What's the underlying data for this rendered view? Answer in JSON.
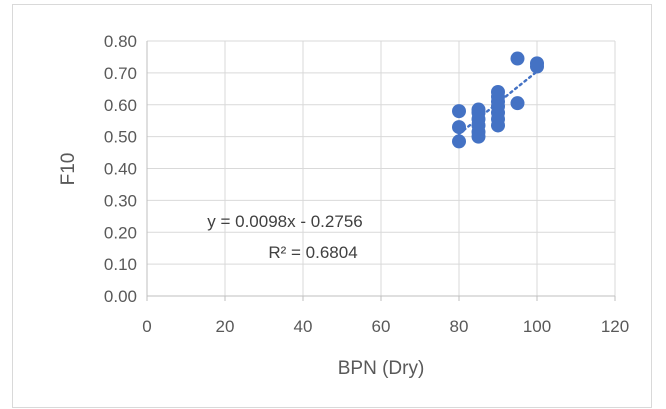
{
  "chart_data": {
    "type": "scatter",
    "title": "",
    "xlabel": "BPN (Dry)",
    "ylabel": "F10",
    "xlim": [
      0,
      120
    ],
    "ylim": [
      0.0,
      0.8
    ],
    "x_ticks": [
      "0",
      "20",
      "40",
      "60",
      "80",
      "100",
      "120"
    ],
    "y_ticks": [
      "0.00",
      "0.10",
      "0.20",
      "0.30",
      "0.40",
      "0.50",
      "0.60",
      "0.70",
      "0.80"
    ],
    "grid": true,
    "legend": "none",
    "marker_color": "#4472c4",
    "series": [
      {
        "points": [
          {
            "x": 80,
            "y": 0.58
          },
          {
            "x": 80,
            "y": 0.53
          },
          {
            "x": 80,
            "y": 0.485
          },
          {
            "x": 85,
            "y": 0.585
          },
          {
            "x": 85,
            "y": 0.575
          },
          {
            "x": 85,
            "y": 0.555
          },
          {
            "x": 85,
            "y": 0.535
          },
          {
            "x": 85,
            "y": 0.515
          },
          {
            "x": 85,
            "y": 0.5
          },
          {
            "x": 90,
            "y": 0.64
          },
          {
            "x": 90,
            "y": 0.625
          },
          {
            "x": 90,
            "y": 0.61
          },
          {
            "x": 90,
            "y": 0.595
          },
          {
            "x": 90,
            "y": 0.575
          },
          {
            "x": 90,
            "y": 0.555
          },
          {
            "x": 90,
            "y": 0.535
          },
          {
            "x": 95,
            "y": 0.745
          },
          {
            "x": 95,
            "y": 0.605
          },
          {
            "x": 100,
            "y": 0.73
          },
          {
            "x": 100,
            "y": 0.72
          }
        ]
      }
    ],
    "trendline": {
      "style": "dotted",
      "slope": 0.0098,
      "intercept": -0.2756,
      "x_range": [
        80,
        100
      ],
      "equation": "y = 0.0098x - 0.2756",
      "r_squared": "R² = 0.6804"
    }
  }
}
